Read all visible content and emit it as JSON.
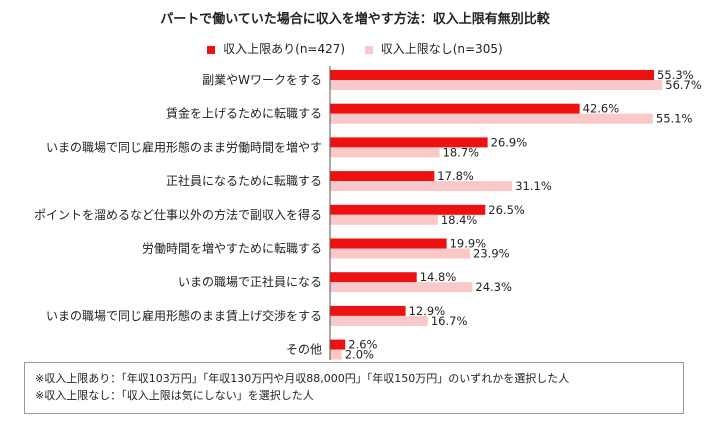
{
  "chart_data": {
    "type": "bar",
    "orientation": "horizontal",
    "title": "パートで働いていた場合に収入を増やす方法：収入上限有無別比較",
    "categories": [
      "副業やWワークをする",
      "賃金を上げるために転職する",
      "いまの職場で同じ雇用形態のまま労働時間を増やす",
      "正社員になるために転職する",
      "ポイントを溜めるなど仕事以外の方法で副収入を得る",
      "労働時間を増やすために転職する",
      "いまの職場で正社員になる",
      "いまの職場で同じ雇用形態のまま賃上げ交渉をする",
      "その他"
    ],
    "series": [
      {
        "name": "収入上限あり(n=427)",
        "color": "#ee1111",
        "values": [
          55.3,
          42.6,
          26.9,
          17.8,
          26.5,
          19.9,
          14.8,
          12.9,
          2.6
        ]
      },
      {
        "name": "収入上限なし(n=305)",
        "color": "#f9c8c8",
        "values": [
          56.7,
          55.1,
          18.7,
          31.1,
          18.4,
          23.9,
          24.3,
          16.7,
          2.0
        ]
      }
    ],
    "value_suffix": "%",
    "xlim": [
      0,
      60
    ],
    "grid": false,
    "legend_position": "top"
  },
  "notes": [
    "※収入上限あり：「年収103万円」「年収130万円や月収88,000円」「年収150万円」のいずれかを選択した人",
    "※収入上限なし：「収入上限は気にしない」を選択した人"
  ]
}
